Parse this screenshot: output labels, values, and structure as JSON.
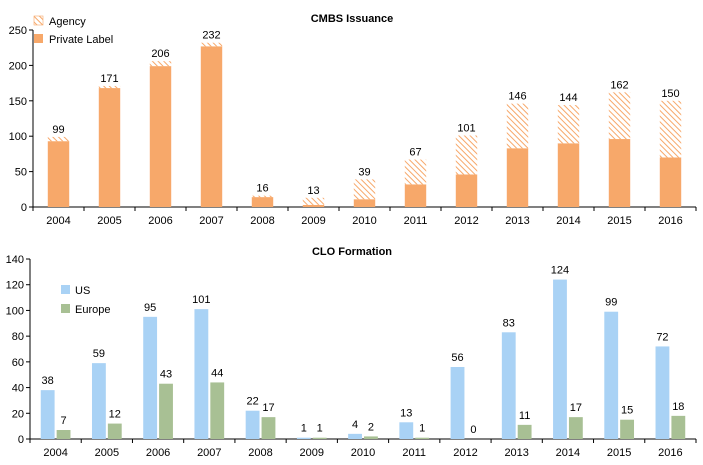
{
  "chart_data": [
    {
      "type": "bar",
      "stacked": true,
      "title": "CMBS Issuance",
      "categories": [
        "2004",
        "2005",
        "2006",
        "2007",
        "2008",
        "2009",
        "2010",
        "2011",
        "2012",
        "2013",
        "2014",
        "2015",
        "2016"
      ],
      "series": [
        {
          "name": "Private Label",
          "color": "#F7A86A",
          "pattern": "solid",
          "values": [
            93,
            168,
            199,
            227,
            14,
            3,
            11,
            32,
            46,
            83,
            90,
            96,
            70
          ]
        },
        {
          "name": "Agency",
          "color": "#F7A86A",
          "pattern": "hatched",
          "values": [
            6,
            3,
            7,
            5,
            2,
            10,
            28,
            35,
            55,
            63,
            54,
            66,
            80
          ]
        }
      ],
      "totals": [
        99,
        171,
        206,
        232,
        16,
        13,
        39,
        67,
        101,
        146,
        144,
        162,
        150
      ],
      "total_labels": [
        "99",
        "171",
        "206",
        "232",
        "16",
        "13",
        "39",
        "67",
        "101",
        "146",
        "144",
        "162",
        "150"
      ],
      "ylim": [
        0,
        250
      ],
      "yticks": [
        0,
        50,
        100,
        150,
        200,
        250
      ],
      "legend_position": "top-left",
      "legend": [
        "Agency",
        "Private Label"
      ],
      "grid": false
    },
    {
      "type": "bar",
      "grouped": true,
      "title": "CLO Formation",
      "categories": [
        "2004",
        "2005",
        "2006",
        "2007",
        "2008",
        "2009",
        "2010",
        "2011",
        "2012",
        "2013",
        "2014",
        "2015",
        "2016"
      ],
      "series": [
        {
          "name": "US",
          "color": "#A9D2F5",
          "values": [
            38,
            59,
            95,
            101,
            22,
            1,
            4,
            13,
            56,
            83,
            124,
            99,
            72
          ],
          "labels": [
            "38",
            "59",
            "95",
            "101",
            "22",
            "1",
            "4",
            "13",
            "56",
            "83",
            "124",
            "99",
            "72"
          ]
        },
        {
          "name": "Europe",
          "color": "#A8C094",
          "values": [
            7,
            12,
            43,
            44,
            17,
            1,
            2,
            1,
            0,
            11,
            17,
            15,
            18
          ],
          "labels": [
            "7",
            "12",
            "43",
            "44",
            "17",
            "1",
            "2",
            "1",
            "0",
            "11",
            "17",
            "15",
            "18"
          ]
        }
      ],
      "ylim": [
        0,
        140
      ],
      "yticks": [
        0,
        20,
        40,
        60,
        80,
        100,
        120,
        140
      ],
      "legend_position": "top-left",
      "legend": [
        "US",
        "Europe"
      ],
      "grid": false
    }
  ]
}
